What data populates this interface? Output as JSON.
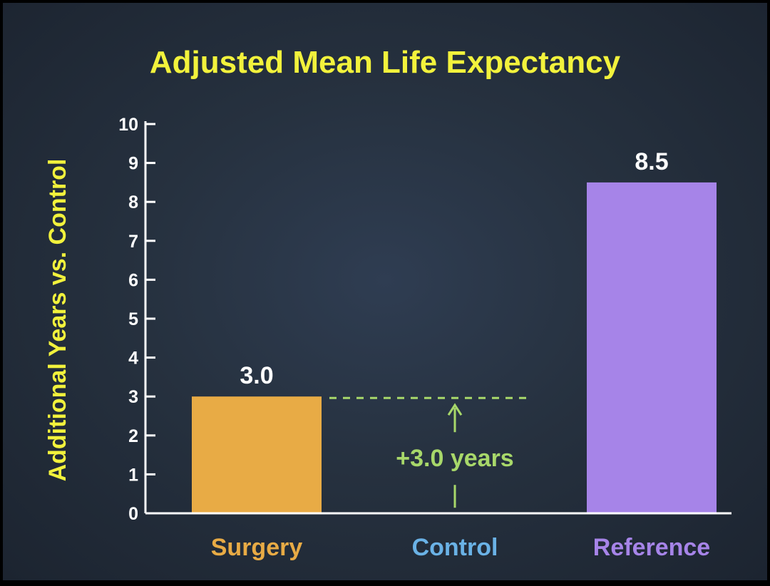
{
  "chart_data": {
    "type": "bar",
    "title": "Adjusted Mean Life Expectancy",
    "ylabel": "Additional Years vs. Control",
    "xlabel": "",
    "ylim": [
      0,
      10
    ],
    "yticks": [
      0,
      1,
      2,
      3,
      4,
      5,
      6,
      7,
      8,
      9,
      10
    ],
    "categories": [
      "Surgery",
      "Control",
      "Reference"
    ],
    "values": [
      3.0,
      0,
      8.5
    ],
    "value_labels": [
      "3.0",
      "",
      "8.5"
    ],
    "colors": [
      "#e8ab45",
      "#6ab2e6",
      "#a684e8"
    ],
    "category_label_colors": [
      "#e8ab45",
      "#6ab2e6",
      "#a684e8"
    ],
    "grid": false,
    "annotation": {
      "text": "+3.0 years",
      "value": 3.0,
      "color": "#a8d86a"
    }
  }
}
